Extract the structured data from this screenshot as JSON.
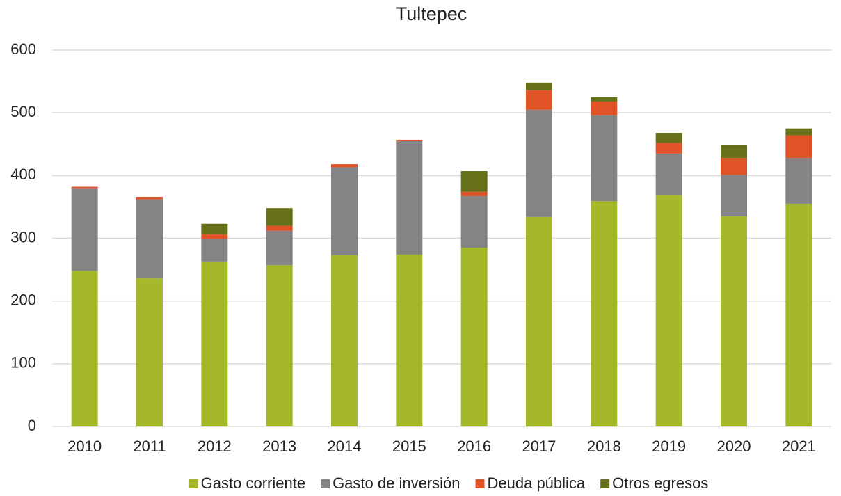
{
  "chart_data": {
    "type": "stacked_bar",
    "title": "Tultepec",
    "categories": [
      "2010",
      "2011",
      "2012",
      "2013",
      "2014",
      "2015",
      "2016",
      "2017",
      "2018",
      "2019",
      "2020",
      "2021"
    ],
    "series": [
      {
        "name": "Gasto corriente",
        "color": "#a5b82a",
        "values": [
          248,
          236,
          263,
          257,
          273,
          274,
          285,
          334,
          359,
          369,
          335,
          355
        ]
      },
      {
        "name": "Gasto de inversión",
        "color": "#848484",
        "values": [
          132,
          126,
          36,
          55,
          140,
          181,
          82,
          171,
          137,
          66,
          66,
          73
        ]
      },
      {
        "name": "Deuda pública",
        "color": "#e05327",
        "values": [
          2,
          4,
          7,
          8,
          5,
          2,
          7,
          31,
          22,
          17,
          27,
          36
        ]
      },
      {
        "name": "Otros egresos",
        "color": "#667019",
        "values": [
          0,
          0,
          17,
          28,
          0,
          0,
          33,
          12,
          7,
          16,
          21,
          11
        ]
      }
    ],
    "ylim": [
      0,
      600
    ],
    "yticks": [
      0,
      100,
      200,
      300,
      400,
      500,
      600
    ],
    "grid": true,
    "legend": "bottom"
  }
}
